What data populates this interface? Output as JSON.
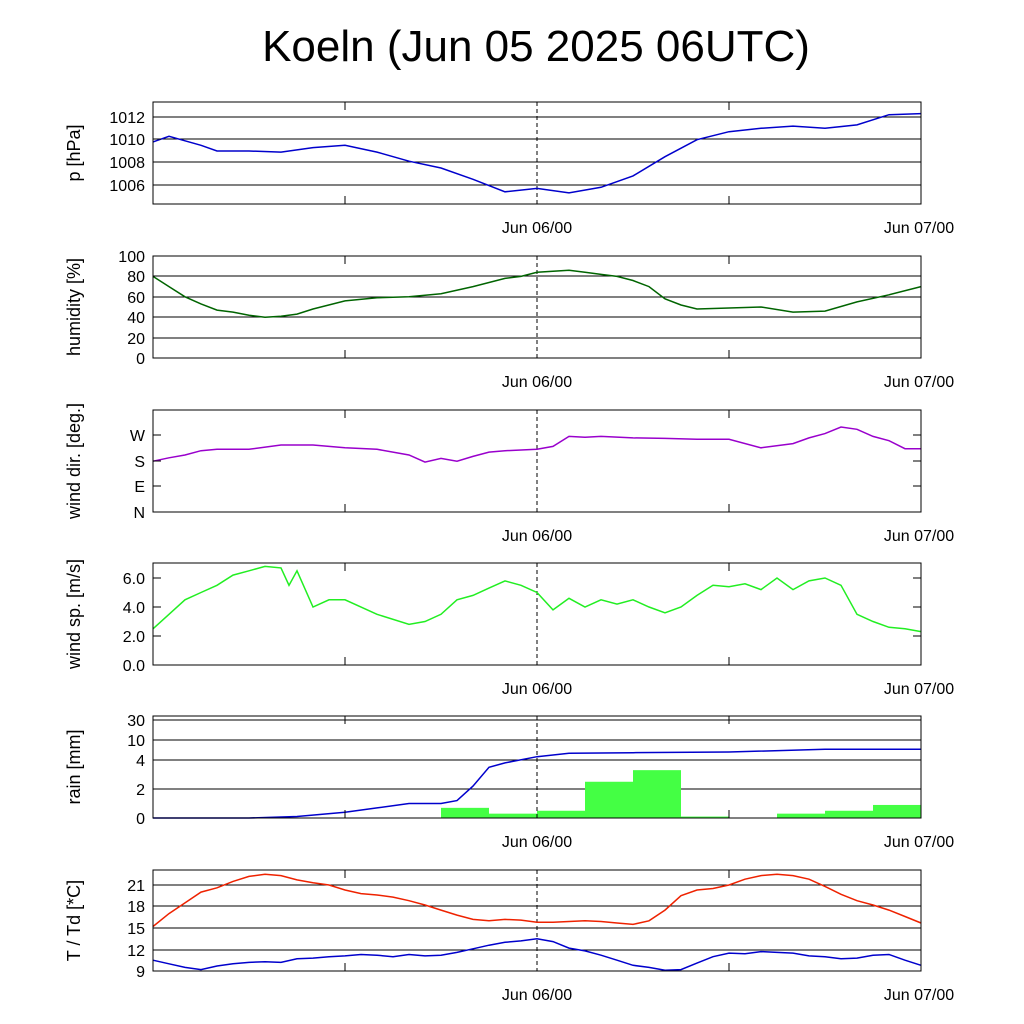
{
  "title": "Koeln (Jun 05 2025 06UTC)",
  "colors": {
    "pressure": "#0000cc",
    "humidity": "#006400",
    "wind_dir": "#9900cc",
    "wind_speed": "#22ee22",
    "rain_bar": "#44ff44",
    "rain_line": "#0000cc",
    "temperature": "#ee2200",
    "dewpoint": "#0000cc",
    "grid": "#000000"
  },
  "chart_data": [
    {
      "type": "line",
      "ylabel": "p [hPa]",
      "x_ticks": [
        "Jun 06/00",
        "Jun 07/00"
      ],
      "y_ticks": [
        "1006",
        "1008",
        "1010",
        "1012"
      ],
      "grid": true,
      "series": [
        {
          "color_key": "pressure",
          "x": [
            0,
            1,
            2,
            3,
            4,
            6,
            8,
            10,
            12,
            14,
            16,
            18,
            20,
            22,
            24,
            26,
            28,
            30,
            32,
            34,
            36,
            38,
            40,
            42,
            44,
            46,
            48
          ],
          "y": [
            1009.8,
            1010.3,
            1009.9,
            1009.5,
            1009.0,
            1009.0,
            1008.9,
            1009.3,
            1009.5,
            1008.9,
            1008.1,
            1007.5,
            1006.5,
            1005.4,
            1005.7,
            1005.3,
            1005.8,
            1006.8,
            1008.5,
            1010.0,
            1010.7,
            1011.0,
            1011.2,
            1011.0,
            1011.3,
            1012.2,
            1012.3
          ]
        }
      ]
    },
    {
      "type": "line",
      "ylabel": "humidity [%]",
      "x_ticks": [
        "Jun 06/00",
        "Jun 07/00"
      ],
      "y_ticks": [
        "0",
        "20",
        "40",
        "60",
        "80",
        "100"
      ],
      "grid": true,
      "series": [
        {
          "color_key": "humidity",
          "x": [
            0,
            1,
            2,
            3,
            4,
            5,
            6,
            7,
            8,
            9,
            10,
            12,
            14,
            16,
            18,
            20,
            22,
            23,
            24,
            25,
            26,
            27,
            28,
            29,
            30,
            31,
            32,
            33,
            34,
            36,
            38,
            40,
            42,
            44,
            46,
            48
          ],
          "y": [
            80,
            70,
            60,
            53,
            47,
            45,
            42,
            40,
            41,
            43,
            48,
            56,
            59,
            60,
            63,
            70,
            78,
            80,
            84,
            85,
            86,
            84,
            82,
            80,
            76,
            70,
            58,
            52,
            48,
            49,
            50,
            45,
            46,
            55,
            62,
            70
          ]
        }
      ]
    },
    {
      "type": "line",
      "ylabel": "wind dir. [deg.]",
      "x_ticks": [
        "Jun 06/00",
        "Jun 07/00"
      ],
      "y_ticks": [
        "N",
        "E",
        "S",
        "W"
      ],
      "ylim": [
        0,
        360
      ],
      "grid": false,
      "series": [
        {
          "color_key": "wind_dir",
          "x": [
            0,
            1,
            2,
            3,
            4,
            6,
            8,
            10,
            12,
            14,
            16,
            17,
            18,
            19,
            20,
            21,
            22,
            24,
            25,
            26,
            27,
            28,
            30,
            32,
            34,
            36,
            38,
            40,
            41,
            42,
            43,
            44,
            45,
            46,
            47,
            48
          ],
          "y": [
            178,
            190,
            200,
            215,
            220,
            220,
            235,
            235,
            225,
            220,
            200,
            175,
            188,
            178,
            195,
            210,
            215,
            220,
            230,
            265,
            262,
            265,
            260,
            258,
            255,
            255,
            225,
            240,
            260,
            275,
            298,
            290,
            265,
            250,
            222,
            222
          ]
        }
      ]
    },
    {
      "type": "line",
      "ylabel": "wind sp. [m/s]",
      "x_ticks": [
        "Jun 06/00",
        "Jun 07/00"
      ],
      "y_ticks": [
        "0.0",
        "2.0",
        "4.0",
        "6.0"
      ],
      "ylim": [
        0,
        7
      ],
      "grid": false,
      "series": [
        {
          "color_key": "wind_speed",
          "x": [
            0,
            1,
            2,
            3,
            4,
            5,
            6,
            7,
            8,
            8.5,
            9,
            10,
            11,
            12,
            14,
            16,
            17,
            18,
            19,
            20,
            21,
            22,
            23,
            24,
            25,
            26,
            27,
            28,
            29,
            30,
            31,
            32,
            33,
            34,
            35,
            36,
            37,
            38,
            39,
            40,
            41,
            42,
            43,
            44,
            45,
            46,
            47,
            48
          ],
          "y": [
            2.5,
            3.5,
            4.5,
            5.0,
            5.5,
            6.2,
            6.5,
            6.8,
            6.7,
            5.5,
            6.5,
            4.0,
            4.5,
            4.5,
            3.5,
            2.8,
            3.0,
            3.5,
            4.5,
            4.8,
            5.3,
            5.8,
            5.5,
            5.0,
            3.8,
            4.6,
            4.0,
            4.5,
            4.2,
            4.5,
            4.0,
            3.6,
            4.0,
            4.8,
            5.5,
            5.4,
            5.6,
            5.2,
            6.0,
            5.2,
            5.8,
            6.0,
            5.5,
            3.5,
            3.0,
            2.6,
            2.5,
            2.3
          ]
        }
      ]
    },
    {
      "type": "bar",
      "ylabel": "rain [mm]",
      "x_ticks": [
        "Jun 06/00",
        "Jun 07/00"
      ],
      "y_ticks": [
        "0",
        "2",
        "4",
        "10",
        "30"
      ],
      "grid": true,
      "bars": {
        "color_key": "rain_bar",
        "x_start": [
          6,
          9,
          12,
          15,
          18,
          21,
          24,
          27,
          30,
          33,
          36,
          39,
          42,
          45
        ],
        "x_end": [
          9,
          12,
          15,
          18,
          21,
          24,
          27,
          30,
          33,
          36,
          39,
          42,
          45,
          48
        ],
        "values": [
          0.0,
          0.0,
          0.0,
          0.0,
          0.7,
          0.3,
          0.5,
          2.5,
          3.3,
          0.1,
          0.0,
          0.3,
          0.5,
          0.9
        ]
      },
      "series": [
        {
          "color_key": "rain_line",
          "x": [
            0,
            3,
            6,
            9,
            12,
            14,
            16,
            17,
            18,
            19,
            20,
            21,
            22,
            24,
            26,
            30,
            36,
            42,
            48
          ],
          "y": [
            0.0,
            0.0,
            0.0,
            0.1,
            0.4,
            0.7,
            1.0,
            1.0,
            1.0,
            1.2,
            2.2,
            3.5,
            3.8,
            5.0,
            6.0,
            6.2,
            6.4,
            7.2,
            7.2
          ]
        }
      ]
    },
    {
      "type": "line",
      "ylabel": "T / Td [*C]",
      "x_ticks": [
        "Jun 06/00",
        "Jun 07/00"
      ],
      "y_ticks": [
        "9",
        "12",
        "15",
        "18",
        "21"
      ],
      "ylim": [
        9,
        23
      ],
      "grid": true,
      "series": [
        {
          "color_key": "temperature",
          "x": [
            0,
            1,
            2,
            3,
            4,
            5,
            6,
            7,
            8,
            9,
            10,
            11,
            12,
            13,
            14,
            15,
            16,
            17,
            18,
            19,
            20,
            21,
            22,
            23,
            24,
            25,
            26,
            27,
            28,
            29,
            30,
            31,
            32,
            33,
            34,
            35,
            36,
            37,
            38,
            39,
            40,
            41,
            42,
            43,
            44,
            45,
            46,
            47,
            48
          ],
          "y": [
            15.2,
            17.0,
            18.5,
            20.0,
            20.6,
            21.5,
            22.2,
            22.5,
            22.3,
            21.7,
            21.3,
            21.0,
            20.3,
            19.8,
            19.6,
            19.3,
            18.8,
            18.2,
            17.5,
            16.8,
            16.2,
            16.0,
            16.2,
            16.1,
            15.8,
            15.8,
            15.9,
            16.0,
            15.9,
            15.7,
            15.5,
            16.0,
            17.5,
            19.5,
            20.3,
            20.5,
            21.0,
            21.8,
            22.3,
            22.5,
            22.3,
            21.8,
            20.8,
            19.7,
            18.8,
            18.2,
            17.5,
            16.6,
            15.7
          ]
        },
        {
          "color_key": "dewpoint",
          "x": [
            0,
            1,
            2,
            3,
            4,
            5,
            6,
            7,
            8,
            9,
            10,
            11,
            12,
            13,
            14,
            15,
            16,
            17,
            18,
            19,
            20,
            21,
            22,
            23,
            24,
            25,
            26,
            27,
            28,
            29,
            30,
            31,
            32,
            33,
            34,
            35,
            36,
            37,
            38,
            39,
            40,
            41,
            42,
            43,
            44,
            45,
            46,
            47,
            48
          ],
          "y": [
            10.5,
            10.0,
            9.5,
            9.2,
            9.7,
            10.0,
            10.2,
            10.3,
            10.2,
            10.7,
            10.8,
            11.0,
            11.1,
            11.3,
            11.2,
            11.0,
            11.3,
            11.1,
            11.2,
            11.6,
            12.1,
            12.6,
            13.0,
            13.2,
            13.5,
            13.1,
            12.2,
            11.8,
            11.2,
            10.5,
            9.8,
            9.5,
            9.1,
            9.2,
            10.1,
            11.0,
            11.5,
            11.4,
            11.7,
            11.6,
            11.5,
            11.1,
            11.0,
            10.7,
            10.8,
            11.2,
            11.3,
            10.5,
            9.8
          ]
        }
      ]
    }
  ]
}
